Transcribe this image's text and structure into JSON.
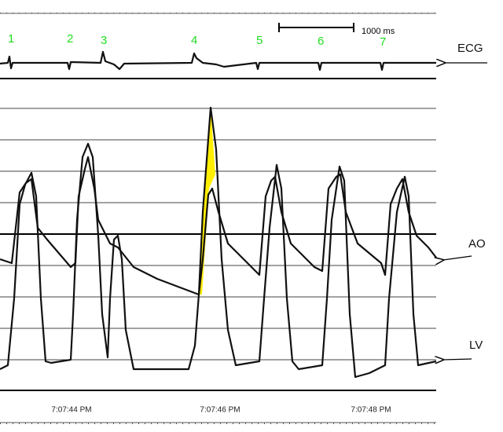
{
  "beats": [
    "1",
    "2",
    "3",
    "4",
    "5",
    "6",
    "7"
  ],
  "scale_label": "1000 ms",
  "channels": {
    "ecg": "ECG",
    "ao": "AO",
    "lv": "LV"
  },
  "times": [
    "7:07:44 PM",
    "7:07:46 PM",
    "7:07:48 PM"
  ]
}
